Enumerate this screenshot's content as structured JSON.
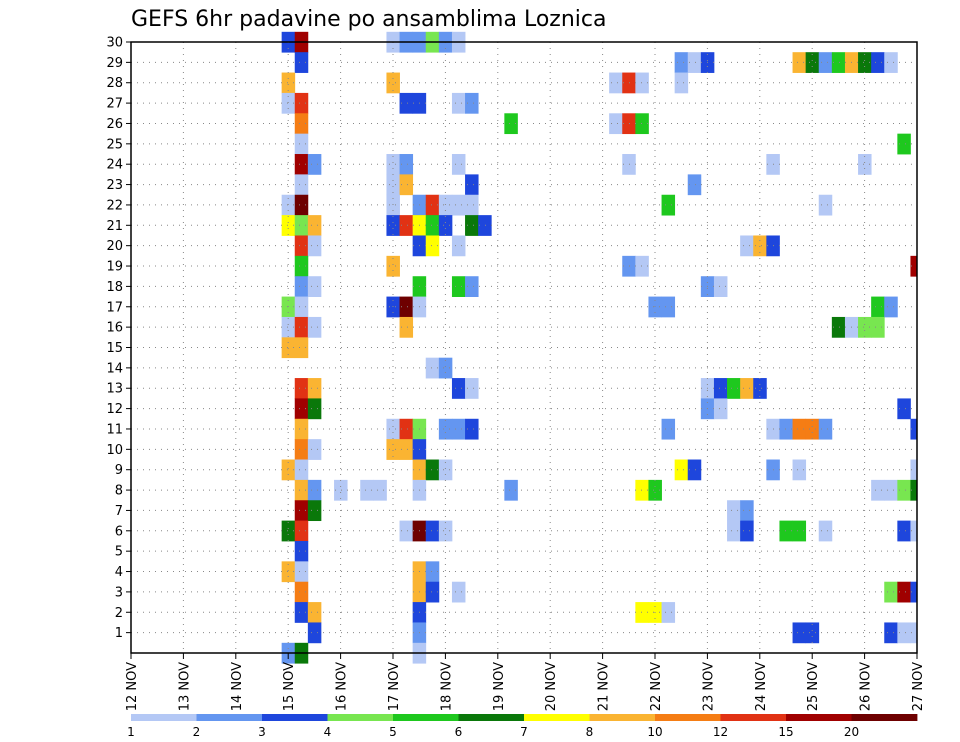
{
  "chart_data": {
    "type": "heatmap",
    "title": "GEFS 6hr padavine po ansamblima Loznica",
    "x_unit": "6h",
    "x_range": [
      0,
      60
    ],
    "y_range": [
      0,
      30
    ],
    "x_tick_labels": [
      "12 NOV",
      "13 NOV",
      "14 NOV",
      "15 NOV",
      "16 NOV",
      "17 NOV",
      "18 NOV",
      "19 NOV",
      "20 NOV",
      "21 NOV",
      "22 NOV",
      "23 NOV",
      "24 NOV",
      "25 NOV",
      "26 NOV",
      "27 NOV"
    ],
    "y_tick_labels": [
      "1",
      "2",
      "3",
      "4",
      "5",
      "6",
      "7",
      "8",
      "9",
      "10",
      "11",
      "12",
      "13",
      "14",
      "15",
      "16",
      "17",
      "18",
      "19",
      "20",
      "21",
      "22",
      "23",
      "24",
      "25",
      "26",
      "27",
      "28",
      "29",
      "30"
    ],
    "grid": true,
    "colorbar": {
      "position": "bottom",
      "colors": [
        "#b4c8f5",
        "#6496f0",
        "#1e46dc",
        "#78e650",
        "#1ec81e",
        "#0a780a",
        "#ffff00",
        "#fab432",
        "#f57d14",
        "#e13214",
        "#a00000",
        "#6e0000"
      ],
      "tick_labels": [
        "1",
        "2",
        "3",
        "4",
        "5",
        "6",
        "7",
        "8",
        "10",
        "12",
        "15",
        "20"
      ]
    },
    "cells": [
      [
        30,
        12,
        3
      ],
      [
        30,
        13,
        11
      ],
      [
        30,
        20,
        1
      ],
      [
        30,
        21,
        2
      ],
      [
        30,
        22,
        2
      ],
      [
        30,
        23,
        4
      ],
      [
        30,
        24,
        2
      ],
      [
        30,
        25,
        1
      ],
      [
        29,
        13,
        3
      ],
      [
        29,
        42,
        2
      ],
      [
        29,
        43,
        1
      ],
      [
        29,
        44,
        3
      ],
      [
        29,
        51,
        8
      ],
      [
        29,
        52,
        6
      ],
      [
        29,
        53,
        2
      ],
      [
        29,
        54,
        5
      ],
      [
        29,
        55,
        8
      ],
      [
        29,
        56,
        6
      ],
      [
        29,
        57,
        3
      ],
      [
        29,
        58,
        1
      ],
      [
        28,
        12,
        8
      ],
      [
        28,
        20,
        8
      ],
      [
        28,
        37,
        1
      ],
      [
        28,
        38,
        10
      ],
      [
        28,
        39,
        1
      ],
      [
        28,
        42,
        1
      ],
      [
        27,
        12,
        1
      ],
      [
        27,
        13,
        10
      ],
      [
        27,
        21,
        3
      ],
      [
        27,
        22,
        3
      ],
      [
        27,
        25,
        1
      ],
      [
        27,
        26,
        2
      ],
      [
        26,
        13,
        9
      ],
      [
        26,
        29,
        5
      ],
      [
        26,
        37,
        1
      ],
      [
        26,
        38,
        10
      ],
      [
        26,
        39,
        5
      ],
      [
        25,
        13,
        1
      ],
      [
        25,
        59,
        5
      ],
      [
        24,
        13,
        11
      ],
      [
        24,
        14,
        2
      ],
      [
        24,
        20,
        1
      ],
      [
        24,
        21,
        2
      ],
      [
        24,
        25,
        1
      ],
      [
        24,
        38,
        1
      ],
      [
        24,
        49,
        1
      ],
      [
        24,
        56,
        1
      ],
      [
        23,
        13,
        1
      ],
      [
        23,
        20,
        1
      ],
      [
        23,
        21,
        8
      ],
      [
        23,
        26,
        3
      ],
      [
        23,
        43,
        2
      ],
      [
        22,
        12,
        1
      ],
      [
        22,
        13,
        12
      ],
      [
        22,
        20,
        1
      ],
      [
        22,
        22,
        2
      ],
      [
        22,
        23,
        10
      ],
      [
        22,
        24,
        1
      ],
      [
        22,
        25,
        1
      ],
      [
        22,
        26,
        1
      ],
      [
        22,
        41,
        5
      ],
      [
        22,
        53,
        1
      ],
      [
        21,
        12,
        7
      ],
      [
        21,
        13,
        4
      ],
      [
        21,
        14,
        8
      ],
      [
        21,
        20,
        3
      ],
      [
        21,
        21,
        10
      ],
      [
        21,
        22,
        7
      ],
      [
        21,
        23,
        5
      ],
      [
        21,
        24,
        3
      ],
      [
        21,
        26,
        6
      ],
      [
        21,
        27,
        3
      ],
      [
        20,
        13,
        10
      ],
      [
        20,
        14,
        1
      ],
      [
        20,
        22,
        3
      ],
      [
        20,
        23,
        7
      ],
      [
        20,
        25,
        1
      ],
      [
        20,
        47,
        1
      ],
      [
        20,
        48,
        8
      ],
      [
        20,
        49,
        3
      ],
      [
        19,
        13,
        5
      ],
      [
        19,
        20,
        8
      ],
      [
        19,
        38,
        2
      ],
      [
        19,
        39,
        1
      ],
      [
        19,
        60,
        11
      ],
      [
        18,
        13,
        2
      ],
      [
        18,
        14,
        1
      ],
      [
        18,
        22,
        5
      ],
      [
        18,
        25,
        5
      ],
      [
        18,
        26,
        2
      ],
      [
        18,
        44,
        2
      ],
      [
        18,
        45,
        1
      ],
      [
        17,
        12,
        4
      ],
      [
        17,
        13,
        1
      ],
      [
        17,
        20,
        3
      ],
      [
        17,
        21,
        12
      ],
      [
        17,
        22,
        1
      ],
      [
        17,
        40,
        2
      ],
      [
        17,
        41,
        2
      ],
      [
        17,
        57,
        5
      ],
      [
        17,
        58,
        2
      ],
      [
        16,
        12,
        1
      ],
      [
        16,
        13,
        10
      ],
      [
        16,
        14,
        1
      ],
      [
        16,
        21,
        8
      ],
      [
        16,
        54,
        6
      ],
      [
        16,
        55,
        1
      ],
      [
        16,
        56,
        4
      ],
      [
        16,
        57,
        4
      ],
      [
        15,
        12,
        8
      ],
      [
        15,
        13,
        8
      ],
      [
        14,
        23,
        1
      ],
      [
        14,
        24,
        2
      ],
      [
        13,
        13,
        10
      ],
      [
        13,
        14,
        8
      ],
      [
        13,
        25,
        3
      ],
      [
        13,
        26,
        1
      ],
      [
        13,
        44,
        1
      ],
      [
        13,
        45,
        3
      ],
      [
        13,
        46,
        5
      ],
      [
        13,
        47,
        8
      ],
      [
        13,
        48,
        3
      ],
      [
        12,
        13,
        11
      ],
      [
        12,
        14,
        6
      ],
      [
        12,
        44,
        2
      ],
      [
        12,
        45,
        1
      ],
      [
        12,
        59,
        3
      ],
      [
        11,
        13,
        8
      ],
      [
        11,
        20,
        1
      ],
      [
        11,
        21,
        10
      ],
      [
        11,
        22,
        4
      ],
      [
        11,
        24,
        2
      ],
      [
        11,
        25,
        2
      ],
      [
        11,
        26,
        3
      ],
      [
        11,
        41,
        2
      ],
      [
        11,
        49,
        1
      ],
      [
        11,
        50,
        2
      ],
      [
        11,
        51,
        9
      ],
      [
        11,
        52,
        9
      ],
      [
        11,
        53,
        2
      ],
      [
        11,
        60,
        3
      ],
      [
        10,
        13,
        9
      ],
      [
        10,
        14,
        1
      ],
      [
        10,
        20,
        8
      ],
      [
        10,
        21,
        8
      ],
      [
        10,
        22,
        3
      ],
      [
        9,
        12,
        8
      ],
      [
        9,
        13,
        1
      ],
      [
        9,
        22,
        8
      ],
      [
        9,
        23,
        6
      ],
      [
        9,
        24,
        1
      ],
      [
        9,
        42,
        7
      ],
      [
        9,
        43,
        3
      ],
      [
        9,
        49,
        2
      ],
      [
        9,
        51,
        1
      ],
      [
        9,
        60,
        1
      ],
      [
        8,
        13,
        8
      ],
      [
        8,
        14,
        2
      ],
      [
        8,
        16,
        1
      ],
      [
        8,
        18,
        1
      ],
      [
        8,
        19,
        1
      ],
      [
        8,
        22,
        1
      ],
      [
        8,
        29,
        2
      ],
      [
        8,
        39,
        7
      ],
      [
        8,
        40,
        5
      ],
      [
        8,
        57,
        1
      ],
      [
        8,
        58,
        1
      ],
      [
        8,
        59,
        4
      ],
      [
        8,
        60,
        6
      ],
      [
        7,
        13,
        11
      ],
      [
        7,
        14,
        6
      ],
      [
        7,
        46,
        1
      ],
      [
        7,
        47,
        2
      ],
      [
        6,
        12,
        6
      ],
      [
        6,
        13,
        10
      ],
      [
        6,
        21,
        1
      ],
      [
        6,
        22,
        12
      ],
      [
        6,
        23,
        3
      ],
      [
        6,
        24,
        1
      ],
      [
        6,
        46,
        1
      ],
      [
        6,
        47,
        3
      ],
      [
        6,
        50,
        5
      ],
      [
        6,
        51,
        5
      ],
      [
        6,
        53,
        1
      ],
      [
        6,
        59,
        3
      ],
      [
        6,
        60,
        1
      ],
      [
        5,
        13,
        3
      ],
      [
        4,
        12,
        8
      ],
      [
        4,
        13,
        1
      ],
      [
        4,
        22,
        8
      ],
      [
        4,
        23,
        2
      ],
      [
        3,
        13,
        9
      ],
      [
        3,
        22,
        8
      ],
      [
        3,
        23,
        3
      ],
      [
        3,
        25,
        1
      ],
      [
        3,
        58,
        4
      ],
      [
        3,
        59,
        11
      ],
      [
        3,
        60,
        3
      ],
      [
        2,
        13,
        3
      ],
      [
        2,
        14,
        8
      ],
      [
        2,
        22,
        3
      ],
      [
        2,
        39,
        7
      ],
      [
        2,
        40,
        7
      ],
      [
        2,
        41,
        1
      ],
      [
        1,
        14,
        3
      ],
      [
        1,
        22,
        2
      ],
      [
        1,
        51,
        3
      ],
      [
        1,
        52,
        3
      ],
      [
        1,
        58,
        3
      ],
      [
        1,
        59,
        1
      ],
      [
        1,
        60,
        1
      ],
      [
        0,
        12,
        2
      ],
      [
        0,
        13,
        6
      ],
      [
        0,
        22,
        1
      ]
    ]
  }
}
